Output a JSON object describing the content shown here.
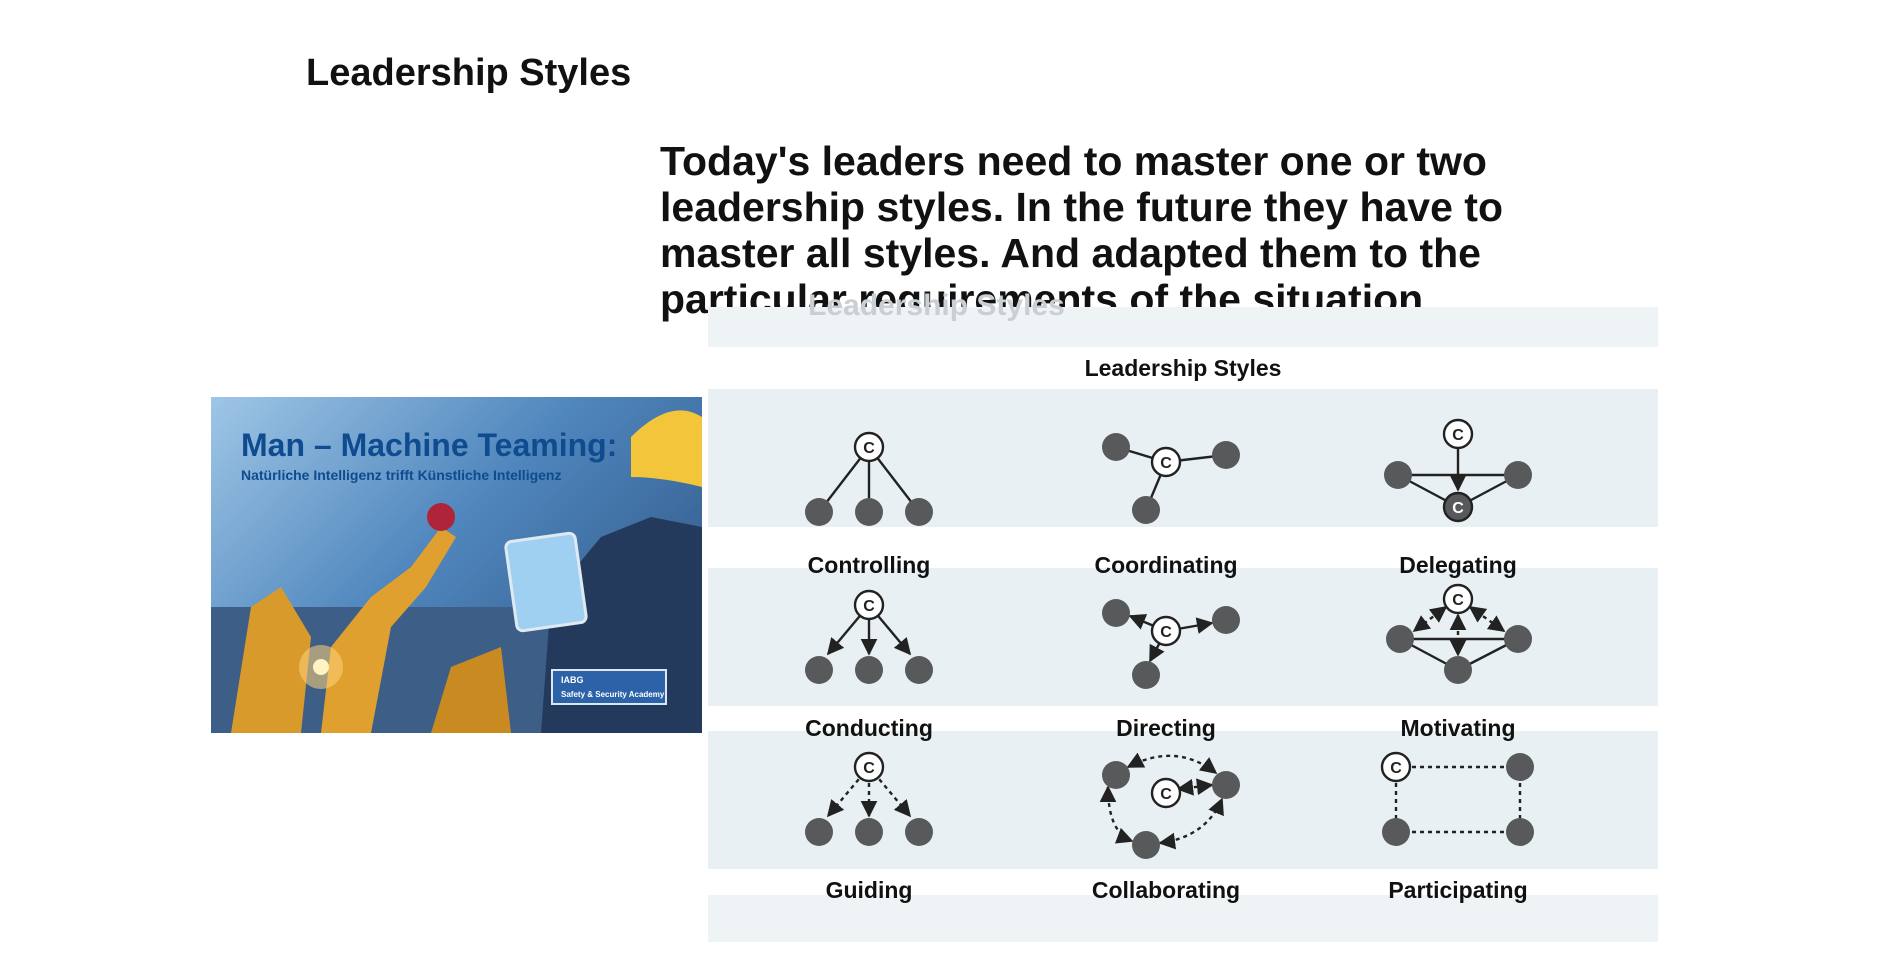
{
  "page": {
    "title": "Leadership Styles",
    "intro_lines": [
      "Today's leaders need to master one or two",
      "leadership styles. In the future they have to",
      "master all styles. And adapted them to the",
      "particular requirements of the situation"
    ]
  },
  "photo": {
    "headline": "Man – Machine Teaming:",
    "subline": "Natürliche Intelligenz trifft Künstliche Intelligenz",
    "badge_brand": "IABG",
    "badge_name": "Safety & Security Academy"
  },
  "diagram": {
    "ghost_title": "Leadership Styles",
    "title": "Leadership Styles",
    "center_symbol": "C",
    "styles": [
      {
        "name": "Controlling",
        "pattern": "solid-lines-down"
      },
      {
        "name": "Coordinating",
        "pattern": "solid-lines-radial"
      },
      {
        "name": "Delegating",
        "pattern": "solid-lines-triangle-arrow"
      },
      {
        "name": "Conducting",
        "pattern": "solid-arrows-down"
      },
      {
        "name": "Directing",
        "pattern": "solid-arrows-radial"
      },
      {
        "name": "Motivating",
        "pattern": "dashed-double-arrows-triangle"
      },
      {
        "name": "Guiding",
        "pattern": "dashed-arrows-down"
      },
      {
        "name": "Collaborating",
        "pattern": "dashed-double-arrows-radial"
      },
      {
        "name": "Participating",
        "pattern": "dashed-rectangle"
      }
    ],
    "colors": {
      "node": "#58595b",
      "band": "#e9f0f3",
      "text": "#111111"
    }
  }
}
